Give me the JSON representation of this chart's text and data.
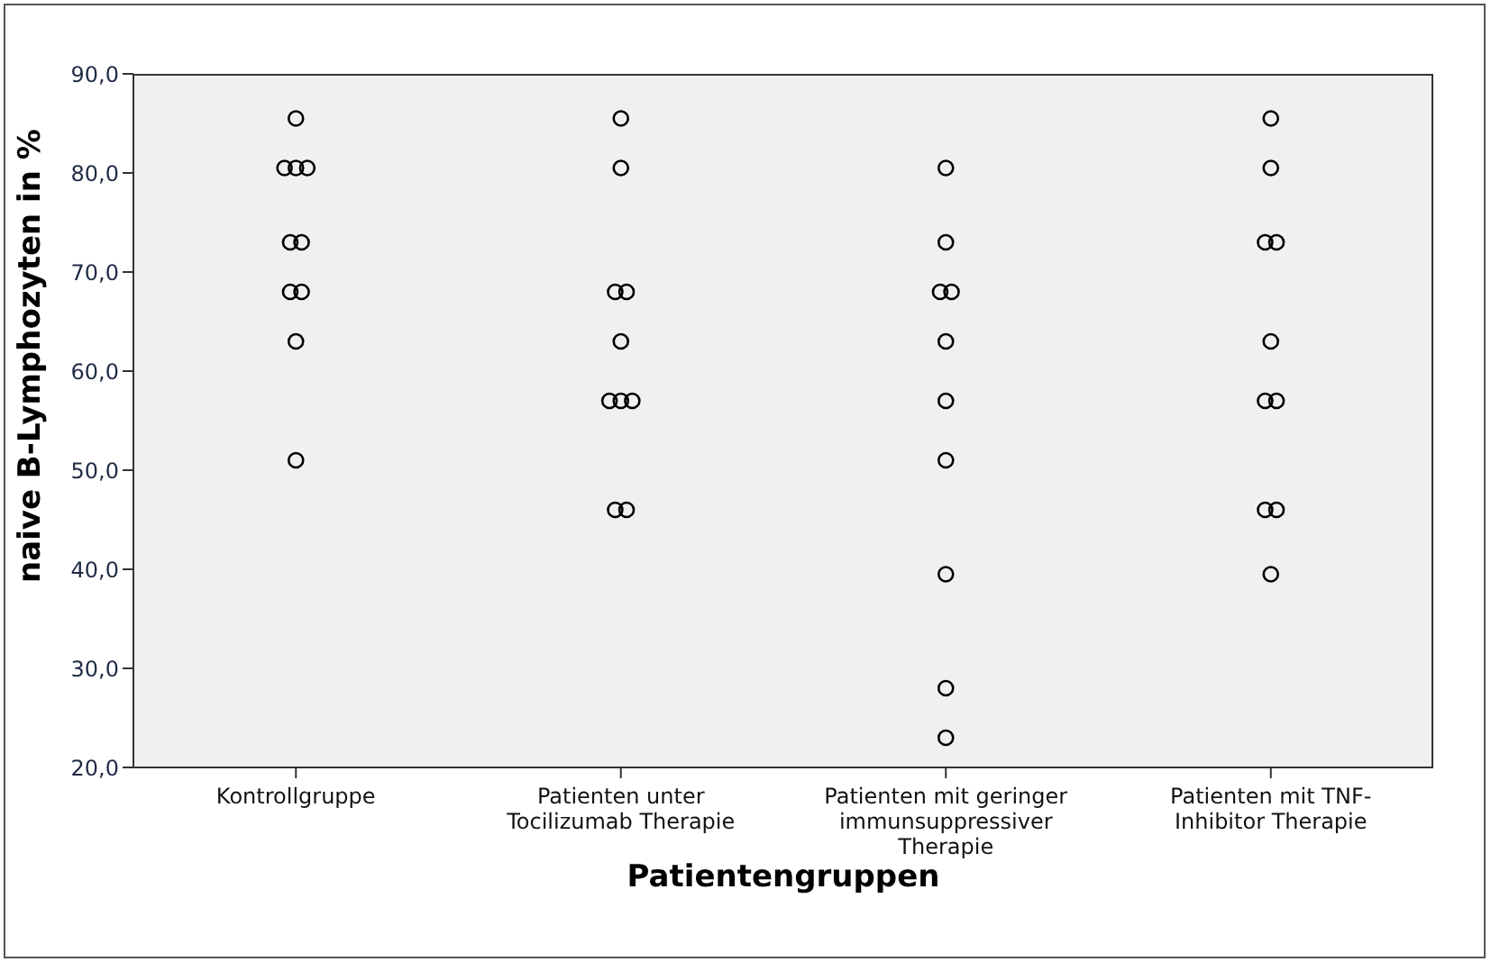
{
  "chart_data": {
    "type": "scatter",
    "xlabel": "Patientengruppen",
    "ylabel": "naive B-Lymphozyten in %",
    "categories": [
      "Kontrollgruppe",
      "Patienten unter Tocilizumab Therapie",
      "Patienten mit geringer immunsuppressiver Therapie",
      "Patienten mit TNF-Inhibitor Therapie"
    ],
    "series": [
      {
        "color": "#000000",
        "x": [
          "Kontrollgruppe",
          "Kontrollgruppe",
          "Kontrollgruppe",
          "Kontrollgruppe",
          "Kontrollgruppe",
          "Kontrollgruppe",
          "Kontrollgruppe",
          "Kontrollgruppe",
          "Kontrollgruppe",
          "Kontrollgruppe",
          "Patienten unter Tocilizumab Therapie",
          "Patienten unter Tocilizumab Therapie",
          "Patienten unter Tocilizumab Therapie",
          "Patienten unter Tocilizumab Therapie",
          "Patienten unter Tocilizumab Therapie",
          "Patienten unter Tocilizumab Therapie",
          "Patienten unter Tocilizumab Therapie",
          "Patienten unter Tocilizumab Therapie",
          "Patienten unter Tocilizumab Therapie",
          "Patienten unter Tocilizumab Therapie",
          "Patienten mit geringer immunsuppressiver Therapie",
          "Patienten mit geringer immunsuppressiver Therapie",
          "Patienten mit geringer immunsuppressiver Therapie",
          "Patienten mit geringer immunsuppressiver Therapie",
          "Patienten mit geringer immunsuppressiver Therapie",
          "Patienten mit geringer immunsuppressiver Therapie",
          "Patienten mit geringer immunsuppressiver Therapie",
          "Patienten mit geringer immunsuppressiver Therapie",
          "Patienten mit geringer immunsuppressiver Therapie",
          "Patienten mit geringer immunsuppressiver Therapie",
          "Patienten mit TNF-Inhibitor Therapie",
          "Patienten mit TNF-Inhibitor Therapie",
          "Patienten mit TNF-Inhibitor Therapie",
          "Patienten mit TNF-Inhibitor Therapie",
          "Patienten mit TNF-Inhibitor Therapie",
          "Patienten mit TNF-Inhibitor Therapie",
          "Patienten mit TNF-Inhibitor Therapie",
          "Patienten mit TNF-Inhibitor Therapie",
          "Patienten mit TNF-Inhibitor Therapie",
          "Patienten mit TNF-Inhibitor Therapie"
        ],
        "values": [
          85.5,
          80.5,
          80.5,
          80.5,
          73,
          73,
          68,
          68,
          63,
          51,
          85.5,
          80.5,
          68,
          68,
          63,
          57,
          57,
          57,
          46,
          46,
          80.5,
          73,
          68,
          68,
          63,
          57,
          51,
          39.5,
          28,
          23,
          85.5,
          80.5,
          73,
          73,
          63,
          57,
          57,
          46,
          46,
          39.5
        ]
      }
    ],
    "ylim": [
      20,
      90
    ],
    "yticks": [
      {
        "value": 20,
        "label": "20,0"
      },
      {
        "value": 30,
        "label": "30,0"
      },
      {
        "value": 40,
        "label": "40,0"
      },
      {
        "value": 50,
        "label": "50,0"
      },
      {
        "value": 60,
        "label": "60,0"
      },
      {
        "value": 70,
        "label": "70,0"
      },
      {
        "value": 80,
        "label": "80,0"
      },
      {
        "value": 90,
        "label": "90,0"
      }
    ],
    "marker": "circle",
    "grid": false,
    "legend": false
  }
}
